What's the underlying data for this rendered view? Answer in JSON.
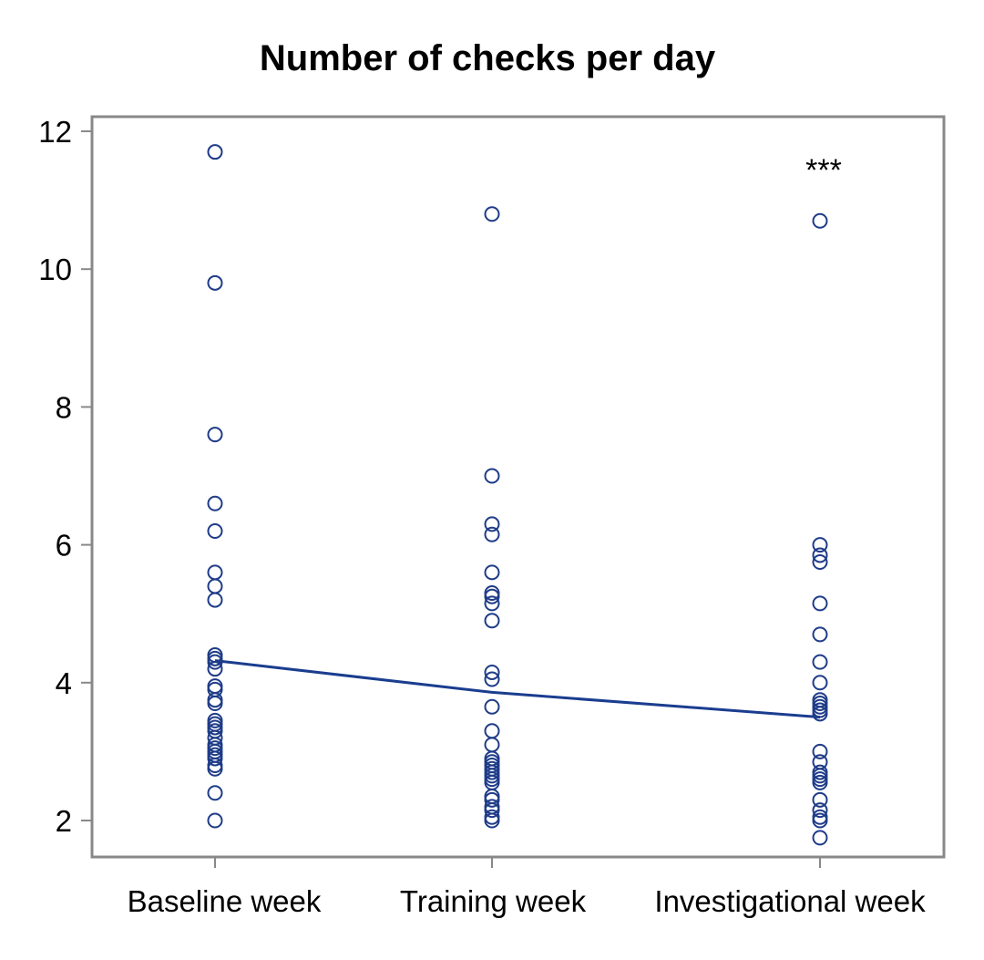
{
  "chart_data": {
    "type": "scatter",
    "title": "Number of checks per day",
    "xlabel": "",
    "ylabel": "",
    "categories": [
      "Baseline week",
      "Training week",
      "Investigational week"
    ],
    "ylim": [
      1.5,
      12.2
    ],
    "yticks": [
      2,
      4,
      6,
      8,
      10,
      12
    ],
    "grid": false,
    "legend": "none",
    "colors": {
      "marker": "#1f3c88",
      "line": "#1a3d8f",
      "axis": "#888888",
      "text": "#000000"
    },
    "series": [
      {
        "category": "Baseline week",
        "values": [
          11.7,
          9.8,
          7.6,
          6.6,
          6.2,
          5.6,
          5.4,
          5.2,
          4.4,
          4.35,
          4.3,
          4.2,
          3.95,
          3.9,
          3.75,
          3.7,
          3.45,
          3.4,
          3.35,
          3.3,
          3.2,
          3.1,
          3.05,
          3.0,
          2.95,
          2.9,
          2.8,
          2.75,
          2.4,
          2.0
        ]
      },
      {
        "category": "Training week",
        "values": [
          10.8,
          7.0,
          6.3,
          6.15,
          5.6,
          5.3,
          5.25,
          5.15,
          4.9,
          4.15,
          4.05,
          3.65,
          3.3,
          3.1,
          2.9,
          2.85,
          2.8,
          2.75,
          2.7,
          2.65,
          2.6,
          2.55,
          2.35,
          2.3,
          2.2,
          2.15,
          2.05,
          2.0
        ]
      },
      {
        "category": "Investigational week",
        "values": [
          10.7,
          6.0,
          5.85,
          5.75,
          5.15,
          4.7,
          4.3,
          4.0,
          3.75,
          3.7,
          3.65,
          3.6,
          3.55,
          3.0,
          2.85,
          2.7,
          2.65,
          2.6,
          2.55,
          2.3,
          2.15,
          2.05,
          2.0,
          1.75
        ]
      }
    ],
    "mean_line": {
      "categories": [
        "Baseline week",
        "Training week",
        "Investigational week"
      ],
      "values": [
        4.32,
        3.86,
        3.5
      ]
    },
    "annotations": [
      {
        "category": "Investigational week",
        "text": "***",
        "y": 11.55
      }
    ]
  }
}
